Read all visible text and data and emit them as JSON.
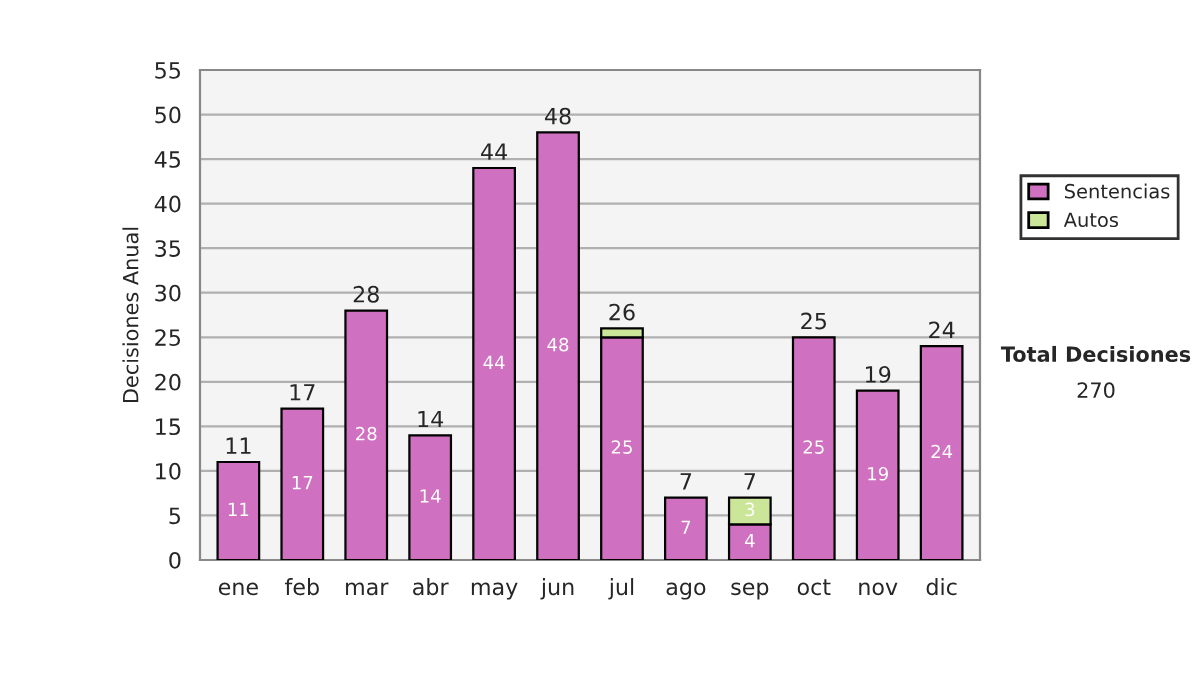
{
  "chart_data": {
    "type": "bar",
    "stacked": true,
    "ylabel": "Decisiones Anual",
    "categories": [
      "ene",
      "feb",
      "mar",
      "abr",
      "may",
      "jun",
      "jul",
      "ago",
      "sep",
      "oct",
      "nov",
      "dic"
    ],
    "series": [
      {
        "name": "Sentencias",
        "color": "#d070c0",
        "values": [
          11,
          17,
          28,
          14,
          44,
          48,
          25,
          7,
          4,
          25,
          19,
          24
        ],
        "value_labels": [
          "11",
          "17",
          "28",
          "14",
          "44",
          "48",
          "25",
          "7",
          "4",
          "25",
          "19",
          "24"
        ]
      },
      {
        "name": "Autos",
        "color": "#cce699",
        "values": [
          0,
          0,
          0,
          0,
          0,
          0,
          1,
          0,
          3,
          0,
          0,
          0
        ],
        "value_labels": [
          null,
          null,
          null,
          null,
          null,
          null,
          null,
          null,
          "3",
          null,
          null,
          null
        ]
      }
    ],
    "totals": [
      "11",
      "17",
      "28",
      "14",
      "44",
      "48",
      "26",
      "7",
      "7",
      "25",
      "19",
      "24"
    ],
    "ylim": [
      0,
      55
    ],
    "yticks": [
      0,
      5,
      10,
      15,
      20,
      25,
      30,
      35,
      40,
      45,
      50,
      55
    ],
    "grid": "y",
    "legend": "right",
    "annotations": [
      "Total Decisiones",
      "270"
    ]
  }
}
